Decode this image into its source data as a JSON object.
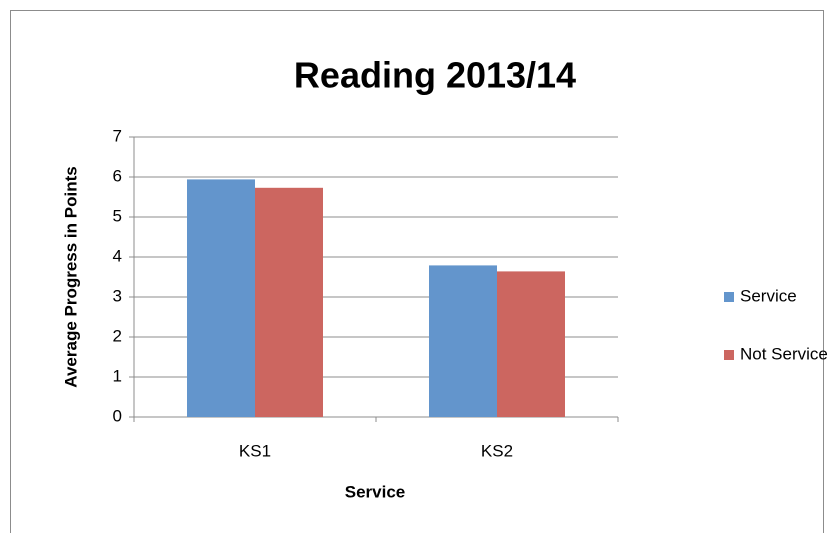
{
  "chart_data": {
    "type": "bar",
    "title": "Reading 2013/14",
    "y_label": "Average Progress in Points",
    "x_label": "Service",
    "categories": [
      "KS1",
      "KS2"
    ],
    "series": [
      {
        "name": "Service",
        "color": "#6395cc",
        "values": [
          5.94,
          3.79
        ]
      },
      {
        "name": "Not Service",
        "color": "#cc6660",
        "values": [
          5.73,
          3.64
        ]
      }
    ],
    "ylim": [
      0,
      7
    ],
    "yticks": [
      0,
      1,
      2,
      3,
      4,
      5,
      6,
      7
    ],
    "grid": true,
    "legend": "right"
  }
}
